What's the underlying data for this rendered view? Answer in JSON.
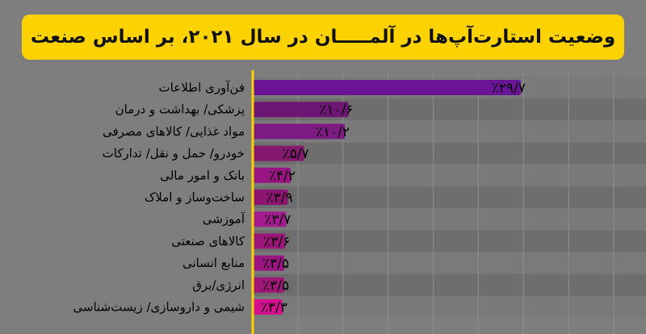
{
  "chart_data": {
    "type": "bar",
    "title": "وضعیت استارت‌آپ‌ها در آلمـــــان در سال ۲۰۲۱، بر اساس صنعت",
    "xlabel": "",
    "ylabel": "",
    "xlim": [
      0,
      40
    ],
    "categories": [
      "فن‌آوری اطلاعات",
      "پزشکی/ بهداشت و درمان",
      "مواد غذایی/ کالاهای مصرفی",
      "خودرو/ حمل و نقل/ تدارکات",
      "بانک و امور مالی",
      "ساخت‌وساز و املاک",
      "آموزشی",
      "کالاهای صنعتی",
      "منابع انسانی",
      "انرژی/برق",
      "شیمی و داروسازی/ زیست‌شناسی"
    ],
    "values": [
      29.7,
      10.6,
      10.2,
      5.7,
      4.2,
      3.9,
      3.7,
      3.6,
      3.5,
      3.5,
      3.3
    ],
    "value_labels": [
      "٪۲۹/۷",
      "٪۱۰/۶",
      "٪۱۰/۲",
      "٪۵/۷",
      "٪۴/۲",
      "٪۳/۹",
      "٪۳/۷",
      "٪۳/۶",
      "٪۳/۵",
      "٪۳/۵",
      "٪۳/۳"
    ],
    "bar_colors": [
      "#6a1596",
      "#6e1673",
      "#7d1b82",
      "#85196f",
      "#991584",
      "#8c1571",
      "#a31b8f",
      "#9a1679",
      "#9b1582",
      "#a11777",
      "#d4108f"
    ],
    "grid": true,
    "legend": "none",
    "colors": {
      "background": "#7e7e7e",
      "title_box": "#fcd200",
      "track_dark": "#6e6e6e",
      "track_light": "#7a7a7a",
      "axis": "#fcd200",
      "grid": "#8e8e8e",
      "label_text": "#000000"
    }
  }
}
